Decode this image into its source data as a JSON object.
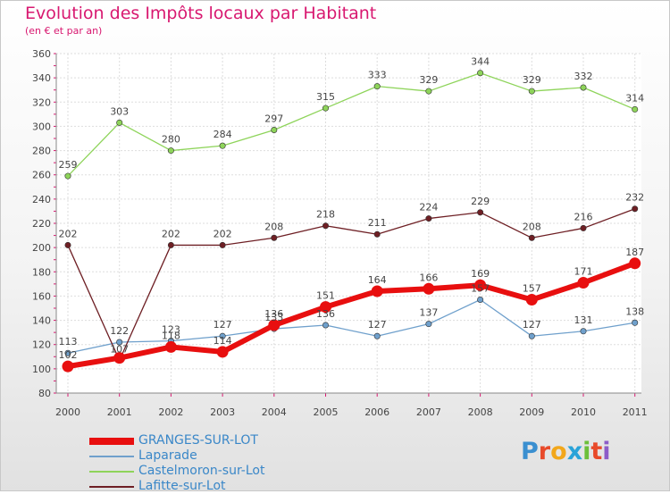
{
  "title": "Evolution des Impôts locaux par Habitant",
  "subtitle": "(en € et par an)",
  "logo": {
    "text": "Proxiti",
    "colors": [
      "#3a8fd0",
      "#e84a2a",
      "#f2a71b",
      "#2aa3d8",
      "#6cbf3a",
      "#e84a2a",
      "#8c5cc8"
    ]
  },
  "chart_data": {
    "type": "line",
    "x": [
      "2000",
      "2001",
      "2002",
      "2003",
      "2004",
      "2005",
      "2006",
      "2007",
      "2008",
      "2009",
      "2010",
      "2011"
    ],
    "ylim": [
      80,
      360
    ],
    "yticks": [
      80,
      100,
      120,
      140,
      160,
      180,
      200,
      220,
      240,
      260,
      280,
      300,
      320,
      340,
      360
    ],
    "grid": true,
    "legend_position": "bottom-left",
    "series": [
      {
        "name": "GRANGES-SUR-LOT",
        "color": "#e80f0f",
        "bold": true,
        "values": [
          102,
          109,
          118,
          114,
          136,
          151,
          164,
          166,
          169,
          157,
          171,
          187
        ],
        "labels": [
          "102",
          "",
          "118",
          "114",
          "136",
          "151",
          "164",
          "166",
          "169",
          "157",
          "171",
          "187"
        ]
      },
      {
        "name": "Laparade",
        "color": "#6fa0cc",
        "bold": false,
        "values": [
          113,
          122,
          123,
          127,
          133,
          136,
          127,
          137,
          157,
          127,
          131,
          138
        ],
        "labels": [
          "113",
          "122",
          "123",
          "127",
          "133",
          "136",
          "127",
          "137",
          "157",
          "127",
          "131",
          "138"
        ]
      },
      {
        "name": "Castelmoron-sur-Lot",
        "color": "#8ed45a",
        "bold": false,
        "values": [
          259,
          303,
          280,
          284,
          297,
          315,
          333,
          329,
          344,
          329,
          332,
          314
        ],
        "labels": [
          "259",
          "303",
          "280",
          "284",
          "297",
          "315",
          "333",
          "329",
          "344",
          "329",
          "332",
          "314"
        ]
      },
      {
        "name": "Lafitte-sur-Lot",
        "color": "#6e1f24",
        "bold": false,
        "values": [
          202,
          107,
          202,
          202,
          208,
          218,
          211,
          224,
          229,
          208,
          216,
          232
        ],
        "labels": [
          "202",
          "107",
          "202",
          "202",
          "208",
          "218",
          "211",
          "224",
          "229",
          "208",
          "216",
          "232"
        ]
      }
    ]
  }
}
